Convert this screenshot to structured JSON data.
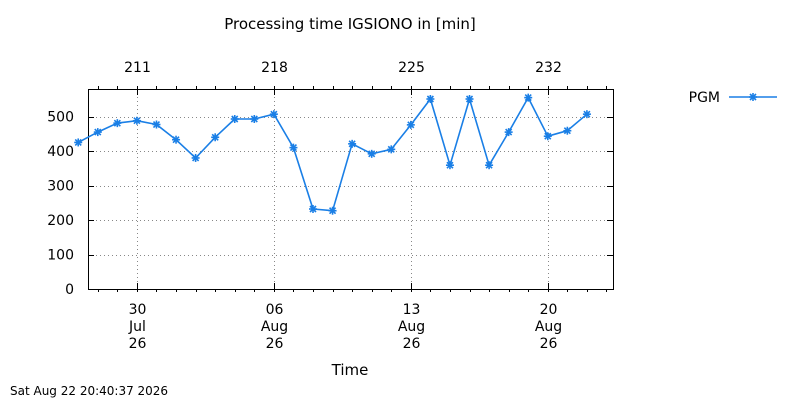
{
  "chart_data": {
    "type": "line",
    "title": "Processing time IGSIONO in [min]",
    "xlabel": "Time",
    "ylabel": "",
    "x_bottom_ticks": [
      {
        "day": "2026-07-30",
        "lines": [
          "30",
          "Jul",
          "26"
        ]
      },
      {
        "day": "2026-08-06",
        "lines": [
          "06",
          "Aug",
          "26"
        ]
      },
      {
        "day": "2026-08-13",
        "lines": [
          "13",
          "Aug",
          "26"
        ]
      },
      {
        "day": "2026-08-20",
        "lines": [
          "20",
          "Aug",
          "26"
        ]
      }
    ],
    "x_top_ticks": [
      {
        "day": "2026-07-30",
        "label": "211"
      },
      {
        "day": "2026-08-06",
        "label": "218"
      },
      {
        "day": "2026-08-13",
        "label": "225"
      },
      {
        "day": "2026-08-20",
        "label": "232"
      }
    ],
    "xlim": [
      "2026-07-27 12:00",
      "2026-08-23 08:00"
    ],
    "ylim": [
      0,
      580
    ],
    "yticks": [
      0,
      100,
      200,
      300,
      400,
      500
    ],
    "grid": true,
    "legend_position": "top-right outside",
    "series": [
      {
        "name": "PGM",
        "color": "#1a7fe6",
        "marker": "star",
        "points": [
          {
            "x": "2026-07-27",
            "y": 425
          },
          {
            "x": "2026-07-28",
            "y": 455
          },
          {
            "x": "2026-07-29",
            "y": 481
          },
          {
            "x": "2026-07-30",
            "y": 488
          },
          {
            "x": "2026-07-31",
            "y": 477
          },
          {
            "x": "2026-08-01",
            "y": 433
          },
          {
            "x": "2026-08-02",
            "y": 380
          },
          {
            "x": "2026-08-03",
            "y": 440
          },
          {
            "x": "2026-08-04",
            "y": 493
          },
          {
            "x": "2026-08-05",
            "y": 493
          },
          {
            "x": "2026-08-06",
            "y": 507
          },
          {
            "x": "2026-08-07",
            "y": 410
          },
          {
            "x": "2026-08-08",
            "y": 232
          },
          {
            "x": "2026-08-09",
            "y": 227
          },
          {
            "x": "2026-08-10",
            "y": 421
          },
          {
            "x": "2026-08-11",
            "y": 392
          },
          {
            "x": "2026-08-12",
            "y": 405
          },
          {
            "x": "2026-08-13",
            "y": 476
          },
          {
            "x": "2026-08-14",
            "y": 551
          },
          {
            "x": "2026-08-15",
            "y": 359
          },
          {
            "x": "2026-08-16",
            "y": 551
          },
          {
            "x": "2026-08-17",
            "y": 359
          },
          {
            "x": "2026-08-18",
            "y": 455
          },
          {
            "x": "2026-08-19",
            "y": 555
          },
          {
            "x": "2026-08-20",
            "y": 443
          },
          {
            "x": "2026-08-21",
            "y": 459
          },
          {
            "x": "2026-08-22",
            "y": 507
          }
        ]
      }
    ]
  },
  "footer": {
    "timestamp": "Sat Aug 22 20:40:37 2026"
  }
}
